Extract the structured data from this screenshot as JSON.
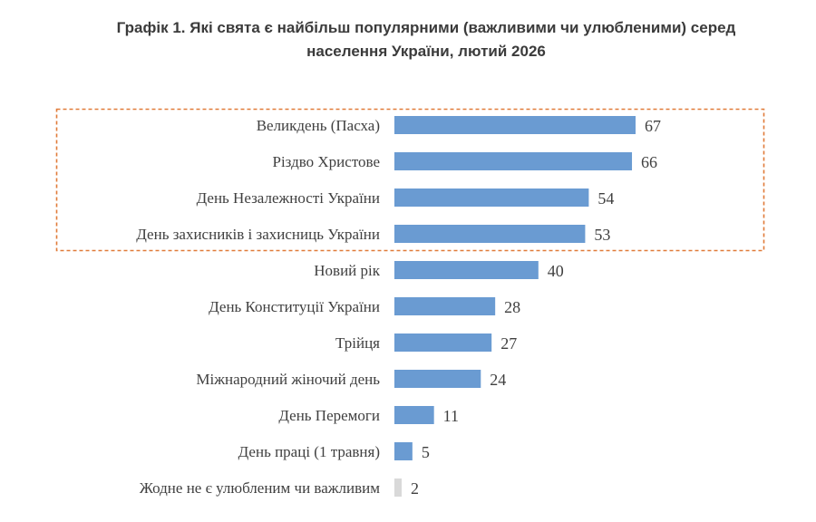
{
  "chart_data": {
    "type": "bar",
    "orientation": "horizontal",
    "title_line1": "Графік 1. Які свята є найбільш популярними (важливими чи улюбленими) серед",
    "title_line2": "населення України, лютий 2026",
    "categories": [
      "Великдень (Пасха)",
      "Різдво Христове",
      "День Незалежності України",
      "День захисників і захисниць України",
      "Новий рік",
      "День Конституції України",
      "Трійця",
      "Міжнародний жіночий день",
      "День Перемоги",
      "День праці (1 травня)",
      "Жодне не є улюбленим чи важливим"
    ],
    "values": [
      67,
      66,
      54,
      53,
      40,
      28,
      27,
      24,
      11,
      5,
      2
    ],
    "xlim": [
      0,
      67
    ],
    "highlighted_top_n": 4,
    "colors": {
      "bar": "#6a9bd2",
      "none_bar": "#d9d9d9",
      "highlight_box": "#e07b39"
    },
    "grid": false
  }
}
